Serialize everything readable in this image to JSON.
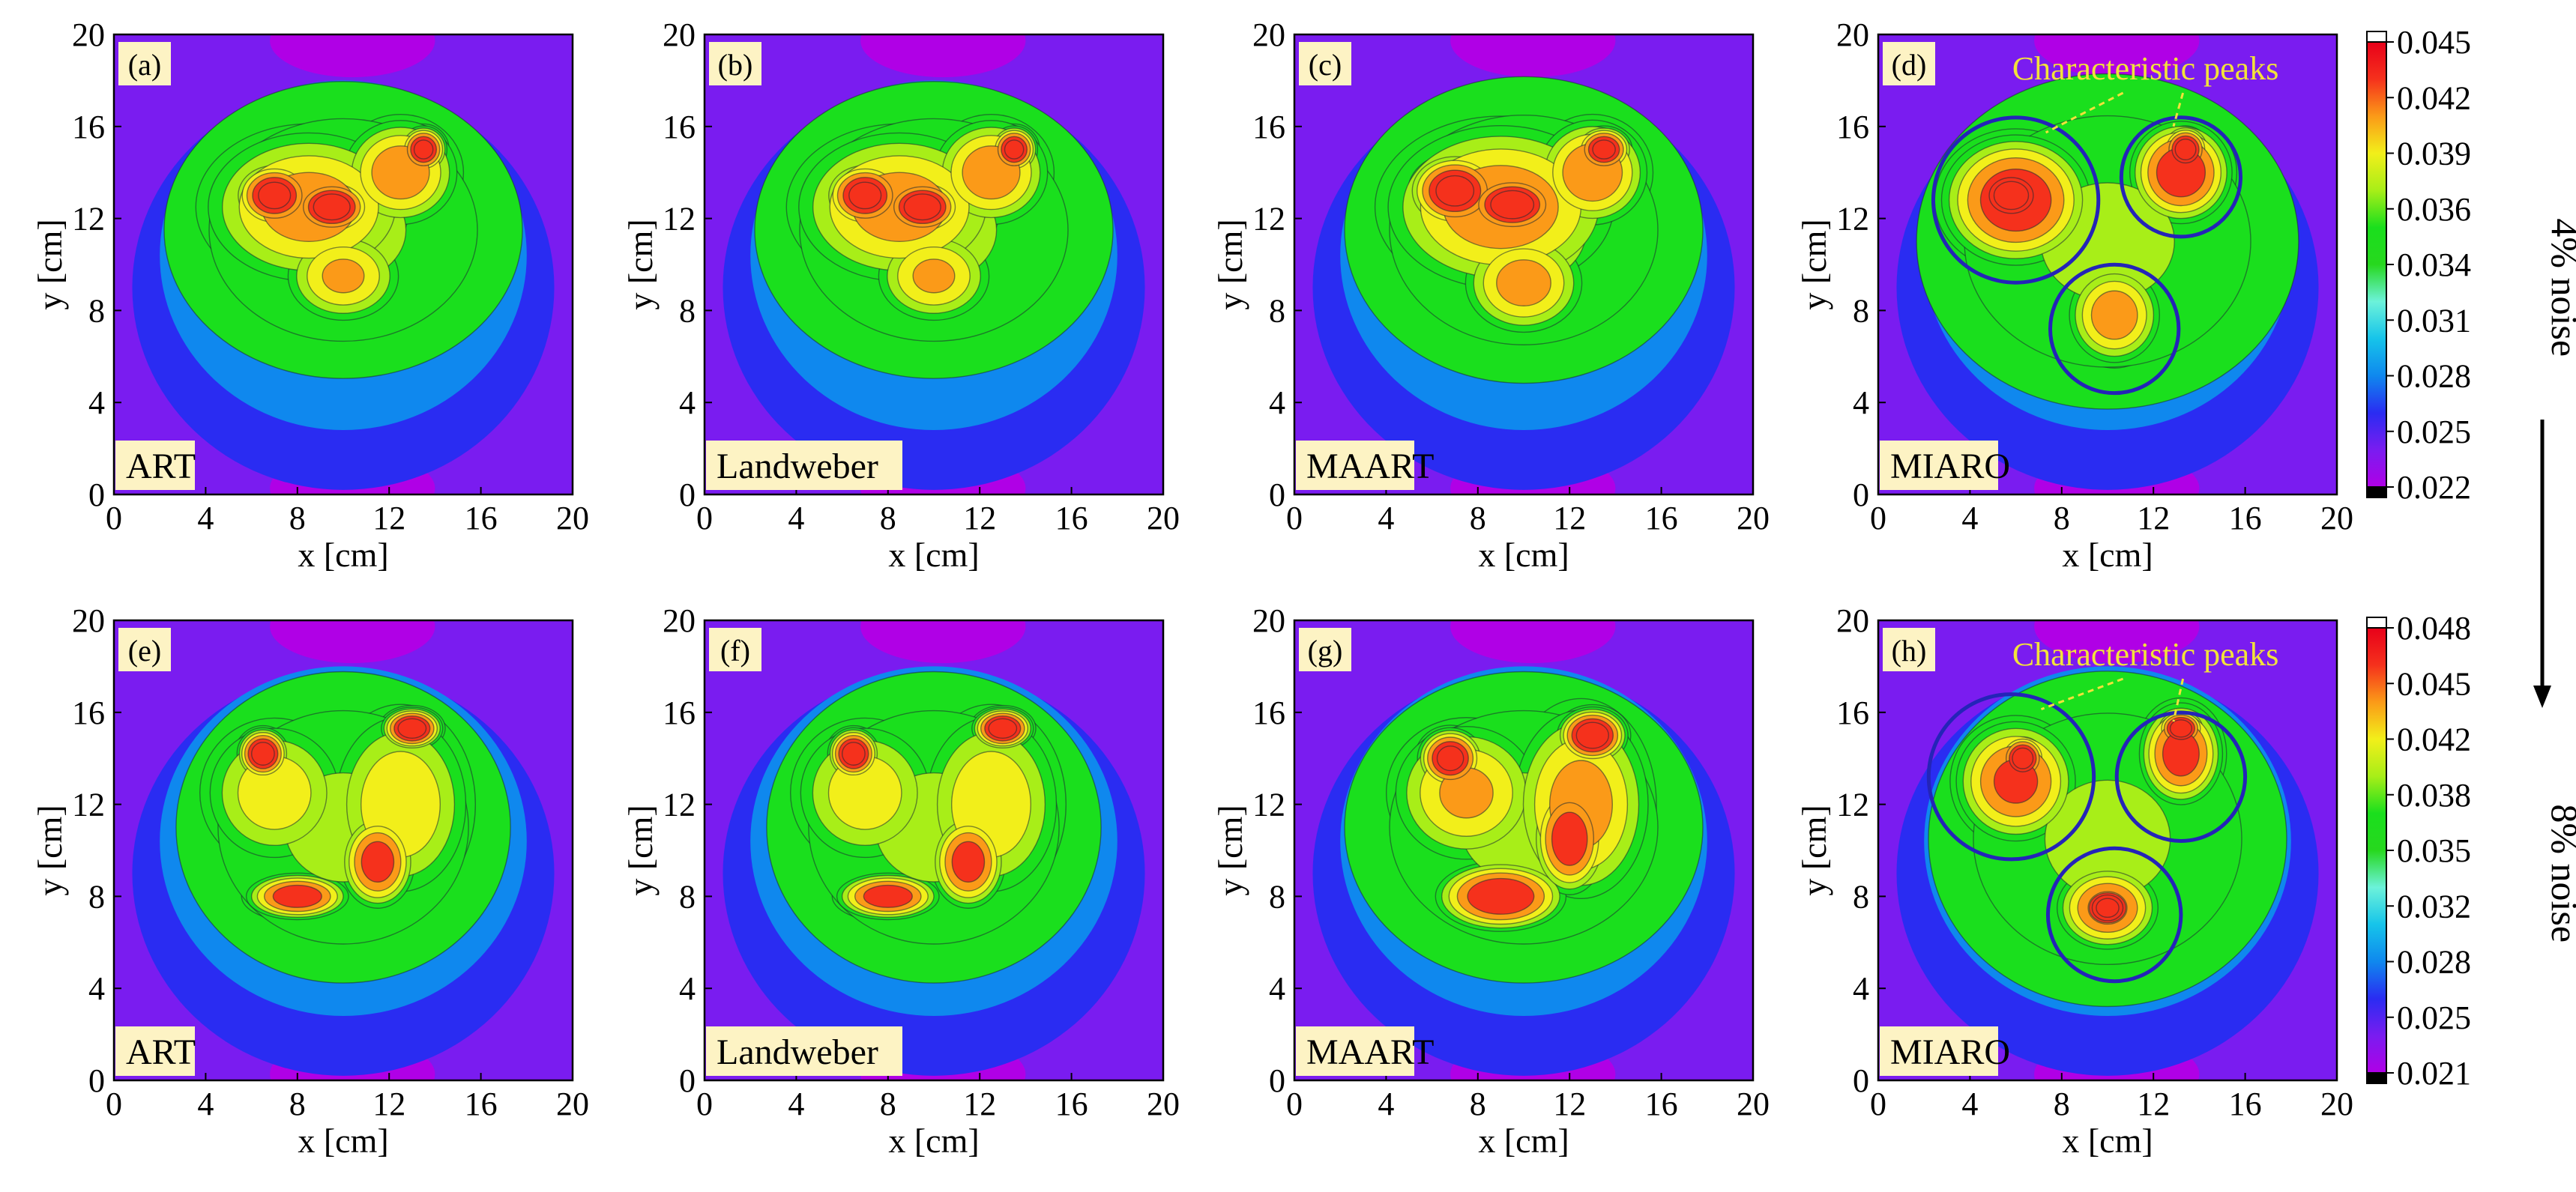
{
  "figure": {
    "colors": {
      "ramp": [
        "#b000e6",
        "#7a1cf0",
        "#2a2cf2",
        "#0f88ee",
        "#16c4ea",
        "#6cf2da",
        "#27d81e",
        "#1adf1d",
        "#a8ee18",
        "#f2ef1a",
        "#fb9a18",
        "#f5311c",
        "#e8001a"
      ],
      "ring": "#2424b8",
      "label_bg": "#fdf3c4",
      "peaks_text": "#f2e23a",
      "contour": "#1d2a33"
    },
    "axes": {
      "xlabel": "x [cm]",
      "ylabel": "y [cm]",
      "ticks": [
        "0",
        "4",
        "8",
        "12",
        "16",
        "20"
      ]
    },
    "rows": [
      {
        "noise_label": "4% noise",
        "colorbar": {
          "ticks": [
            "0.045",
            "0.042",
            "0.039",
            "0.036",
            "0.034",
            "0.031",
            "0.028",
            "0.025",
            "0.022"
          ]
        },
        "panels": [
          {
            "tag": "(a)",
            "method": "ART"
          },
          {
            "tag": "(b)",
            "method": "Landweber"
          },
          {
            "tag": "(c)",
            "method": "MAART"
          },
          {
            "tag": "(d)",
            "method": "MIARO",
            "annotation": "Characteristic peaks"
          }
        ]
      },
      {
        "noise_label": "8% noise",
        "colorbar": {
          "ticks": [
            "0.048",
            "0.045",
            "0.042",
            "0.038",
            "0.035",
            "0.032",
            "0.028",
            "0.025",
            "0.021"
          ]
        },
        "panels": [
          {
            "tag": "(e)",
            "method": "ART"
          },
          {
            "tag": "(f)",
            "method": "Landweber"
          },
          {
            "tag": "(g)",
            "method": "MAART"
          },
          {
            "tag": "(h)",
            "method": "MIARO",
            "annotation": "Characteristic peaks"
          }
        ]
      }
    ]
  },
  "chart_data": [
    {
      "type": "heatmap",
      "id": "a",
      "method": "ART",
      "noise": "4% noise",
      "xlim": [
        0,
        20
      ],
      "ylim": [
        0,
        20
      ],
      "xlabel": "x [cm]",
      "ylabel": "y [cm]",
      "value_range": [
        0.022,
        0.045
      ],
      "approx_peaks": [
        {
          "x": 6.5,
          "y": 13.0,
          "v": 0.044
        },
        {
          "x": 9.0,
          "y": 12.5,
          "v": 0.045
        },
        {
          "x": 13.5,
          "y": 15.0,
          "v": 0.044
        },
        {
          "x": 10.0,
          "y": 9.5,
          "v": 0.042
        }
      ]
    },
    {
      "type": "heatmap",
      "id": "b",
      "method": "Landweber",
      "noise": "4% noise",
      "xlim": [
        0,
        20
      ],
      "ylim": [
        0,
        20
      ],
      "xlabel": "x [cm]",
      "ylabel": "y [cm]",
      "value_range": [
        0.022,
        0.045
      ],
      "approx_peaks": [
        {
          "x": 6.5,
          "y": 13.0,
          "v": 0.044
        },
        {
          "x": 9.0,
          "y": 12.5,
          "v": 0.045
        },
        {
          "x": 13.5,
          "y": 15.0,
          "v": 0.044
        },
        {
          "x": 10.0,
          "y": 9.5,
          "v": 0.042
        }
      ]
    },
    {
      "type": "heatmap",
      "id": "c",
      "method": "MAART",
      "noise": "4% noise",
      "xlim": [
        0,
        20
      ],
      "ylim": [
        0,
        20
      ],
      "xlabel": "x [cm]",
      "ylabel": "y [cm]",
      "value_range": [
        0.022,
        0.045
      ],
      "approx_peaks": [
        {
          "x": 6.0,
          "y": 13.5,
          "v": 0.044
        },
        {
          "x": 9.5,
          "y": 12.5,
          "v": 0.045
        },
        {
          "x": 13.5,
          "y": 15.0,
          "v": 0.044
        },
        {
          "x": 10.0,
          "y": 9.0,
          "v": 0.042
        }
      ]
    },
    {
      "type": "heatmap",
      "id": "d",
      "method": "MIARO",
      "noise": "4% noise",
      "xlim": [
        0,
        20
      ],
      "ylim": [
        0,
        20
      ],
      "xlabel": "x [cm]",
      "ylabel": "y [cm]",
      "value_range": [
        0.022,
        0.045
      ],
      "annotation": "Characteristic peaks",
      "approx_peaks": [
        {
          "x": 6.0,
          "y": 12.8,
          "v": 0.045
        },
        {
          "x": 13.2,
          "y": 14.0,
          "v": 0.044
        },
        {
          "x": 10.3,
          "y": 7.8,
          "v": 0.041
        }
      ]
    },
    {
      "type": "heatmap",
      "id": "e",
      "method": "ART",
      "noise": "8% noise",
      "xlim": [
        0,
        20
      ],
      "ylim": [
        0,
        20
      ],
      "xlabel": "x [cm]",
      "ylabel": "y [cm]",
      "value_range": [
        0.021,
        0.048
      ],
      "approx_peaks": [
        {
          "x": 6.5,
          "y": 14.2,
          "v": 0.047
        },
        {
          "x": 13.0,
          "y": 15.3,
          "v": 0.048
        },
        {
          "x": 12.5,
          "y": 12.0,
          "v": 0.045
        },
        {
          "x": 8.0,
          "y": 8.0,
          "v": 0.046
        },
        {
          "x": 11.5,
          "y": 9.0,
          "v": 0.044
        }
      ]
    },
    {
      "type": "heatmap",
      "id": "f",
      "method": "Landweber",
      "noise": "8% noise",
      "xlim": [
        0,
        20
      ],
      "ylim": [
        0,
        20
      ],
      "xlabel": "x [cm]",
      "ylabel": "y [cm]",
      "value_range": [
        0.021,
        0.048
      ],
      "approx_peaks": [
        {
          "x": 6.5,
          "y": 14.2,
          "v": 0.047
        },
        {
          "x": 13.0,
          "y": 15.3,
          "v": 0.048
        },
        {
          "x": 12.5,
          "y": 12.0,
          "v": 0.045
        },
        {
          "x": 8.0,
          "y": 8.0,
          "v": 0.046
        },
        {
          "x": 11.5,
          "y": 9.0,
          "v": 0.044
        }
      ]
    },
    {
      "type": "heatmap",
      "id": "g",
      "method": "MAART",
      "noise": "8% noise",
      "xlim": [
        0,
        20
      ],
      "ylim": [
        0,
        20
      ],
      "xlabel": "x [cm]",
      "ylabel": "y [cm]",
      "value_range": [
        0.021,
        0.048
      ],
      "approx_peaks": [
        {
          "x": 6.5,
          "y": 14.0,
          "v": 0.046
        },
        {
          "x": 13.0,
          "y": 15.0,
          "v": 0.048
        },
        {
          "x": 12.0,
          "y": 11.0,
          "v": 0.045
        },
        {
          "x": 9.0,
          "y": 8.0,
          "v": 0.046
        }
      ]
    },
    {
      "type": "heatmap",
      "id": "h",
      "method": "MIARO",
      "noise": "8% noise",
      "xlim": [
        0,
        20
      ],
      "ylim": [
        0,
        20
      ],
      "xlabel": "x [cm]",
      "ylabel": "y [cm]",
      "value_range": [
        0.021,
        0.048
      ],
      "annotation": "Characteristic peaks",
      "approx_peaks": [
        {
          "x": 6.0,
          "y": 13.0,
          "v": 0.047
        },
        {
          "x": 13.2,
          "y": 14.5,
          "v": 0.048
        },
        {
          "x": 10.0,
          "y": 7.5,
          "v": 0.046
        }
      ]
    }
  ]
}
